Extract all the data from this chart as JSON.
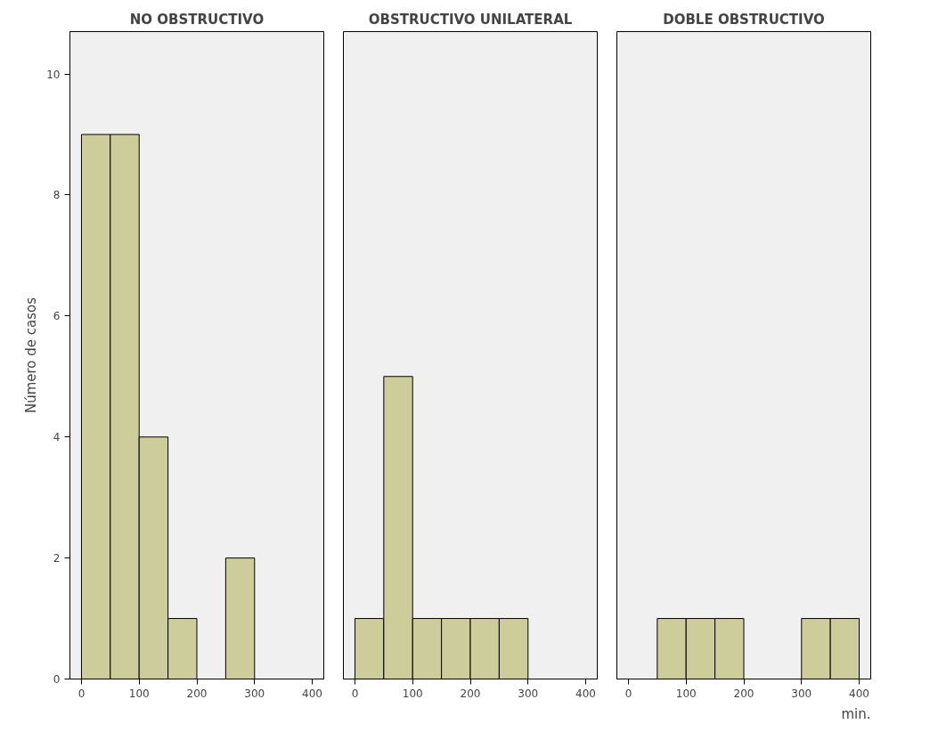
{
  "chart_data": [
    {
      "type": "histogram",
      "title": "NO OBSTRUCTIVO",
      "ylabel": "Número de casos",
      "bins": [
        0,
        50,
        100,
        150,
        200,
        250,
        300
      ],
      "values": [
        9,
        9,
        4,
        1,
        null,
        2
      ],
      "color": "#cdcd9b",
      "xlim": [
        -20,
        420
      ],
      "xticks": [
        0,
        100,
        200,
        300,
        400
      ],
      "ylim": [
        0,
        10.7
      ],
      "yticks": [
        0,
        2,
        4,
        6,
        8,
        10
      ],
      "grid": false
    },
    {
      "type": "histogram",
      "title": "OBSTRUCTIVO UNILATERAL",
      "bins": [
        0,
        50,
        100,
        150,
        200,
        250,
        300
      ],
      "values": [
        1,
        5,
        1,
        1,
        1,
        1
      ],
      "color": "#cdcd9b",
      "xlim": [
        -20,
        420
      ],
      "xticks": [
        0,
        100,
        200,
        300,
        400
      ],
      "ylim": [
        0,
        10.7
      ],
      "yticks": [
        0,
        2,
        4,
        6,
        8,
        10
      ],
      "tick_labels": "x",
      "grid": false
    },
    {
      "type": "histogram",
      "title": "DOBLE OBSTRUCTIVO",
      "xlabel": "min.",
      "bins": [
        50,
        100,
        150,
        200,
        250,
        300,
        350,
        400
      ],
      "values": [
        1,
        1,
        1,
        null,
        null,
        1,
        1
      ],
      "color": "#cdcd9b",
      "xlim": [
        -20,
        420
      ],
      "xticks": [
        0,
        100,
        200,
        300,
        400
      ],
      "ylim": [
        0,
        10.7
      ],
      "yticks": [
        0,
        2,
        4,
        6,
        8,
        10
      ],
      "tick_labels": "x",
      "grid": false
    }
  ]
}
